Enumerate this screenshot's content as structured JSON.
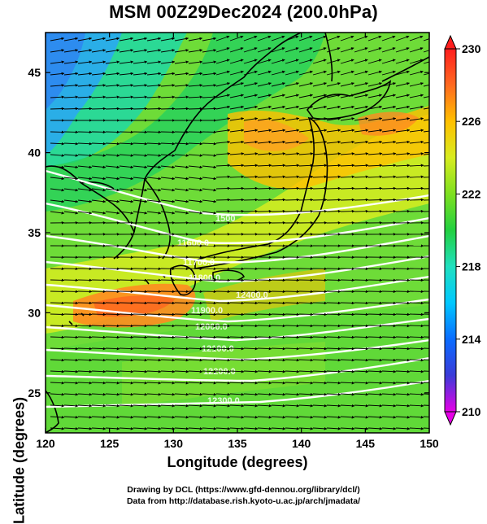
{
  "title": "MSM 00Z29Dec2024 (200.0hPa)",
  "xlabel": "Longitude (degrees)",
  "ylabel": "Latitude  (degrees)",
  "credit1": "Drawing by DCL (https://www.gfd-dennou.org/library/dcl/)",
  "credit2": "Data from http://database.rish.kyoto-u.ac.jp/arch/jmadata/",
  "map": {
    "lon_range": [
      120,
      150
    ],
    "lat_range": [
      22.5,
      47.5
    ],
    "lon_ticks": [
      120,
      125,
      130,
      135,
      140,
      145,
      150
    ],
    "lat_ticks": [
      25,
      30,
      35,
      40,
      45
    ]
  },
  "colorbar": {
    "min": 210,
    "max": 230,
    "labels": [
      230,
      226,
      222,
      218,
      214,
      210
    ],
    "colors": [
      "#e600e6",
      "#3b3bd8",
      "#0a6cff",
      "#00c8ff",
      "#20e0c0",
      "#22d040",
      "#7ee020",
      "#d8ec20",
      "#ffc000",
      "#ff6a20",
      "#ff1e1e"
    ]
  },
  "contour_labels": [
    "1500",
    "11600.0",
    "11700.0",
    "11800.0",
    "11900.0",
    "12000.0",
    "12100.0",
    "12200.0",
    "12300.0",
    "12400.0"
  ]
}
